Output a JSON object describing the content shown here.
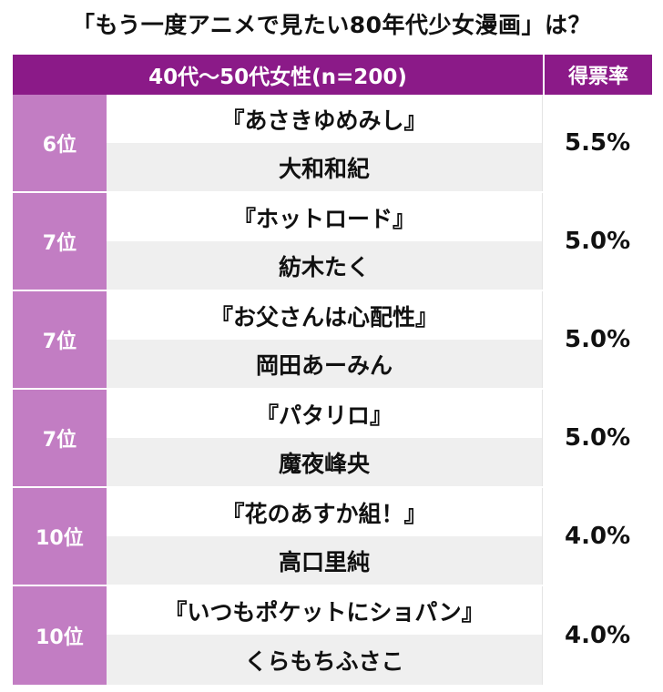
{
  "title": "「もう一度アニメで見たい80年代少女漫画」は？",
  "header": {
    "group": "40代〜50代女性(n=200)",
    "rate_label": "得票率"
  },
  "rows": [
    {
      "rank": "6位",
      "work": "『あさきゆめみし』",
      "author": "大和和紀",
      "rate": "5.5%"
    },
    {
      "rank": "7位",
      "work": "『ホットロード』",
      "author": "紡木たく",
      "rate": "5.0%"
    },
    {
      "rank": "7位",
      "work": "『お父さんは心配性』",
      "author": "岡田あーみん",
      "rate": "5.0%"
    },
    {
      "rank": "7位",
      "work": "『パタリロ』",
      "author": "魔夜峰央",
      "rate": "5.0%"
    },
    {
      "rank": "10位",
      "work": "『花のあすか組！』",
      "author": "高口里純",
      "rate": "4.0%"
    },
    {
      "rank": "10位",
      "work": "『いつもポケットにショパン』",
      "author": "くらもちふさこ",
      "rate": "4.0%"
    }
  ],
  "colors": {
    "header": "#8b1a88",
    "rank": "#c27dc3",
    "author_bg": "#efefef"
  }
}
